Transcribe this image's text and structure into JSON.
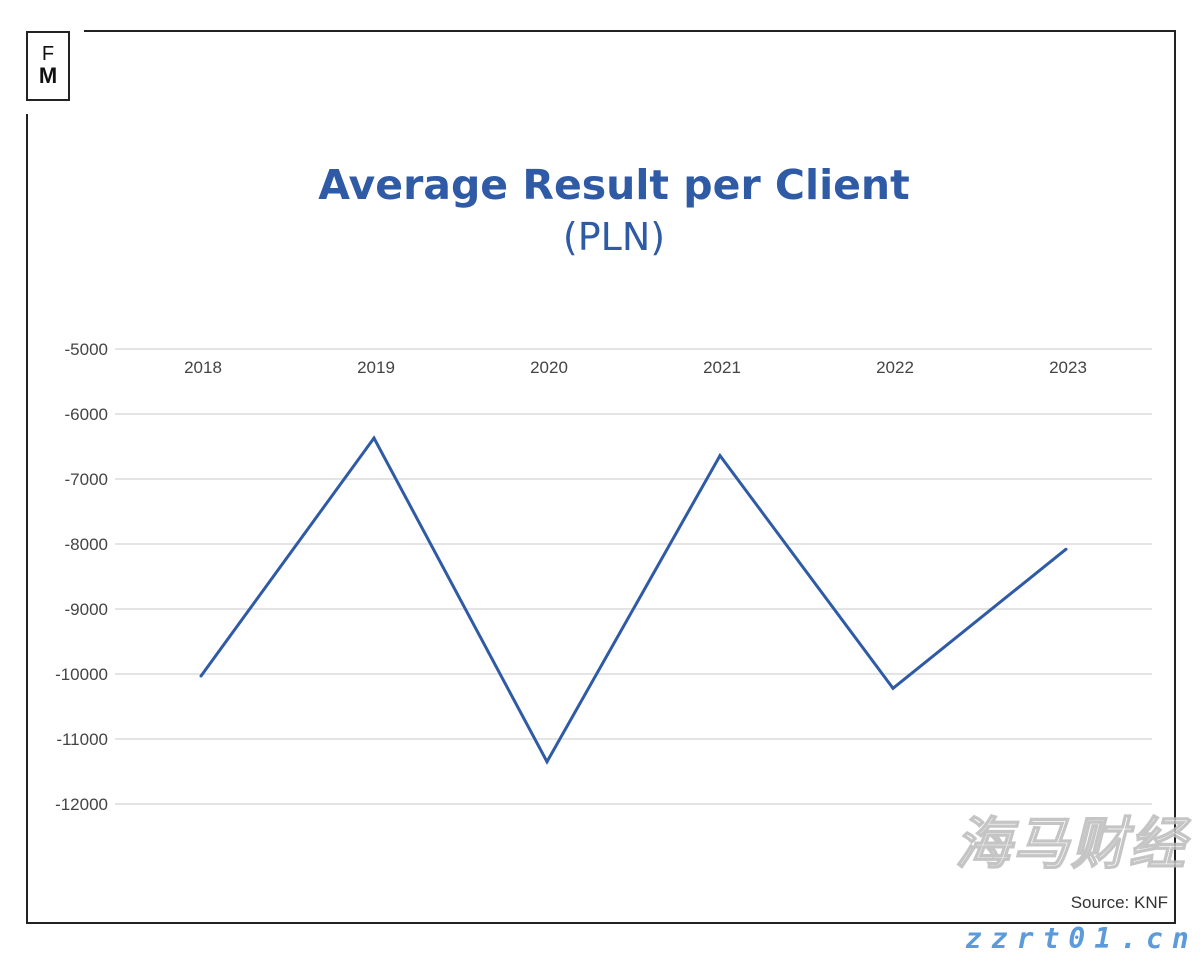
{
  "logo": {
    "line1": "F",
    "line2": "M"
  },
  "chart_data": {
    "type": "line",
    "title": "Average Result per Client",
    "subtitle": "(PLN)",
    "categories": [
      "2018",
      "2019",
      "2020",
      "2021",
      "2022",
      "2023"
    ],
    "series": [
      {
        "values": [
          -10030,
          -6370,
          -11350,
          -6640,
          -10220,
          -8080
        ],
        "color": "#2f5aa6"
      }
    ],
    "ylim": [
      -12000,
      -5000
    ],
    "yticks": [
      "-5000",
      "-6000",
      "-7000",
      "-8000",
      "-9000",
      "-10000",
      "-11000",
      "-12000"
    ],
    "x_axis_position": "top",
    "grid": true,
    "source": "Source: KNF"
  },
  "watermark": {
    "chinese": "海马财经",
    "url": "zzrt01.cn"
  }
}
